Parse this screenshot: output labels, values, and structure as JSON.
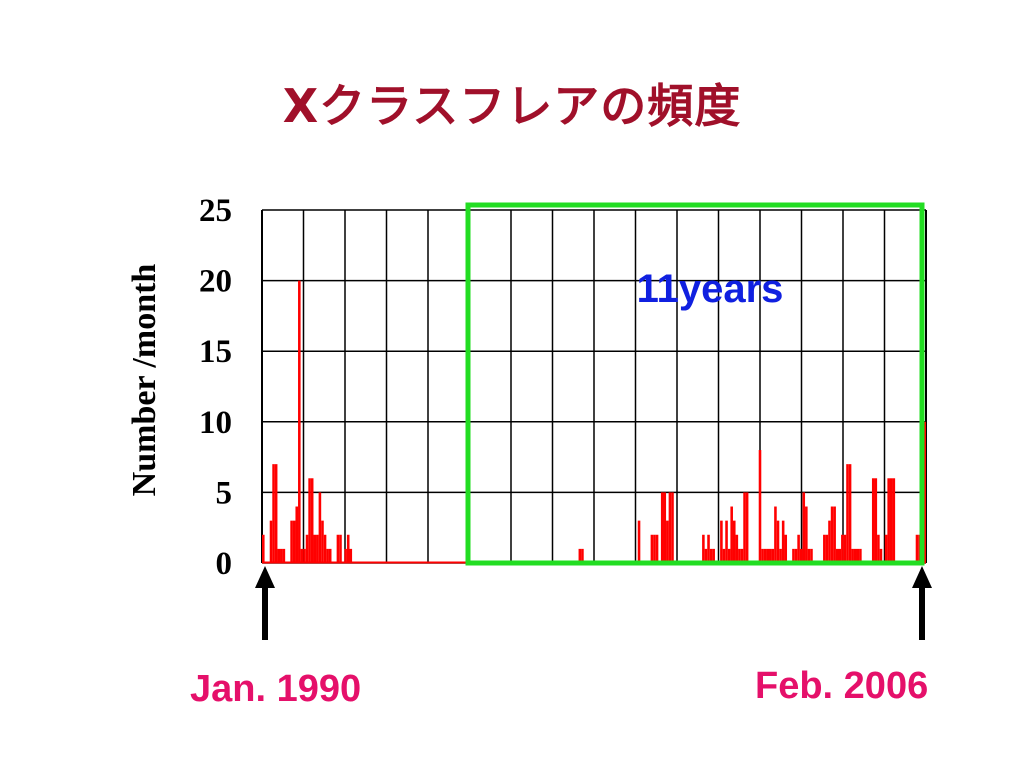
{
  "slide": {
    "title": "Xクラスフレアの頻度"
  },
  "chart_data": {
    "type": "bar",
    "title": "Xクラスフレアの頻度",
    "xlabel": "",
    "ylabel": "Number /month",
    "ylim": [
      0,
      25
    ],
    "yticks": [
      "0",
      "5",
      "10",
      "15",
      "20",
      "25"
    ],
    "x_start": "Jan. 1990",
    "x_end": "Feb. 2006",
    "grid": true,
    "series_color": "#ff0000",
    "values": [
      2,
      0,
      0,
      3,
      7,
      7,
      1,
      1,
      1,
      0,
      0,
      3,
      3,
      4,
      20,
      1,
      1,
      2,
      6,
      6,
      2,
      2,
      5,
      3,
      2,
      1,
      1,
      0,
      0,
      2,
      2,
      0,
      1,
      2,
      1,
      0,
      0,
      0,
      0,
      0,
      0,
      0,
      0,
      0,
      0,
      0,
      0,
      0,
      0,
      0,
      0,
      0,
      0,
      0,
      0,
      0,
      0,
      0,
      0,
      0,
      0,
      0,
      0,
      0,
      0,
      0,
      0,
      0,
      0,
      0,
      0,
      0,
      0,
      0,
      0,
      0,
      0,
      0,
      0,
      0,
      0,
      0,
      0,
      0,
      0,
      0,
      0,
      0,
      0,
      0,
      0,
      0,
      0,
      0,
      0,
      0,
      0,
      0,
      0,
      0,
      0,
      0,
      0,
      0,
      0,
      0,
      0,
      0,
      0,
      0,
      0,
      0,
      0,
      0,
      0,
      0,
      0,
      0,
      0,
      0,
      0,
      0,
      0,
      1,
      1,
      0,
      0,
      0,
      0,
      0,
      0,
      0,
      0,
      0,
      0,
      0,
      0,
      0,
      0,
      0,
      0,
      0,
      0,
      0,
      0,
      0,
      3,
      0,
      0,
      0,
      0,
      2,
      2,
      2,
      0,
      5,
      5,
      3,
      5,
      5,
      0,
      0,
      0,
      0,
      0,
      0,
      0,
      0,
      0,
      0,
      0,
      2,
      1,
      2,
      1,
      1,
      0,
      0,
      3,
      1,
      3,
      1,
      4,
      3,
      2,
      1,
      1,
      5,
      5,
      0,
      0,
      0,
      0,
      8,
      1,
      1,
      1,
      1,
      1,
      4,
      3,
      1,
      3,
      2,
      0,
      0,
      1,
      1,
      2,
      1,
      5,
      4,
      1,
      1,
      0,
      0,
      0,
      0,
      2,
      2,
      3,
      4,
      4,
      1,
      1,
      2,
      2,
      7,
      7,
      1,
      1,
      1,
      1,
      0,
      0,
      0,
      0,
      6,
      6,
      2,
      1,
      0,
      2,
      6,
      6,
      6,
      0,
      0,
      0,
      0,
      0,
      0,
      0,
      0,
      2,
      2,
      10,
      10
    ],
    "annotations": [
      {
        "text": "11years",
        "color": "#1020e0",
        "highlight_color": "#22dd22"
      }
    ]
  }
}
